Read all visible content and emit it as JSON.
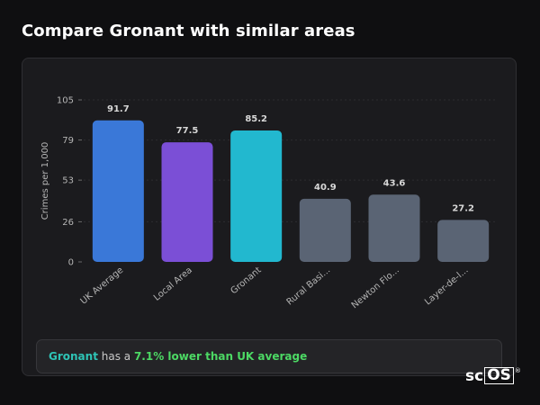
{
  "page": {
    "heading": "Compare Gronant with similar areas"
  },
  "chart_data": {
    "type": "bar",
    "categories": [
      "UK Average",
      "Local Area",
      "Gronant",
      "Rural Basi...",
      "Newton Flo...",
      "Layer-de-l..."
    ],
    "values": [
      91.7,
      77.5,
      85.2,
      40.9,
      43.6,
      27.2
    ],
    "value_labels": [
      "91.7",
      "77.5",
      "85.2",
      "40.9",
      "43.6",
      "27.2"
    ],
    "colors": [
      "#3a78d8",
      "#7b4fd6",
      "#22b8cf",
      "#5a6474",
      "#5a6474",
      "#5a6474"
    ],
    "ylabel": "Crimes per 1,000",
    "xlabel": "",
    "ylim": [
      0,
      105
    ],
    "yticks": [
      0,
      26,
      53,
      79,
      105
    ],
    "grid": true,
    "legend": "none"
  },
  "summary": {
    "name": "Gronant",
    "middle": " has a ",
    "stat": "7.1% lower than UK average"
  },
  "brand": {
    "prefix": "sc",
    "boxed": "OS",
    "reg": "®"
  }
}
